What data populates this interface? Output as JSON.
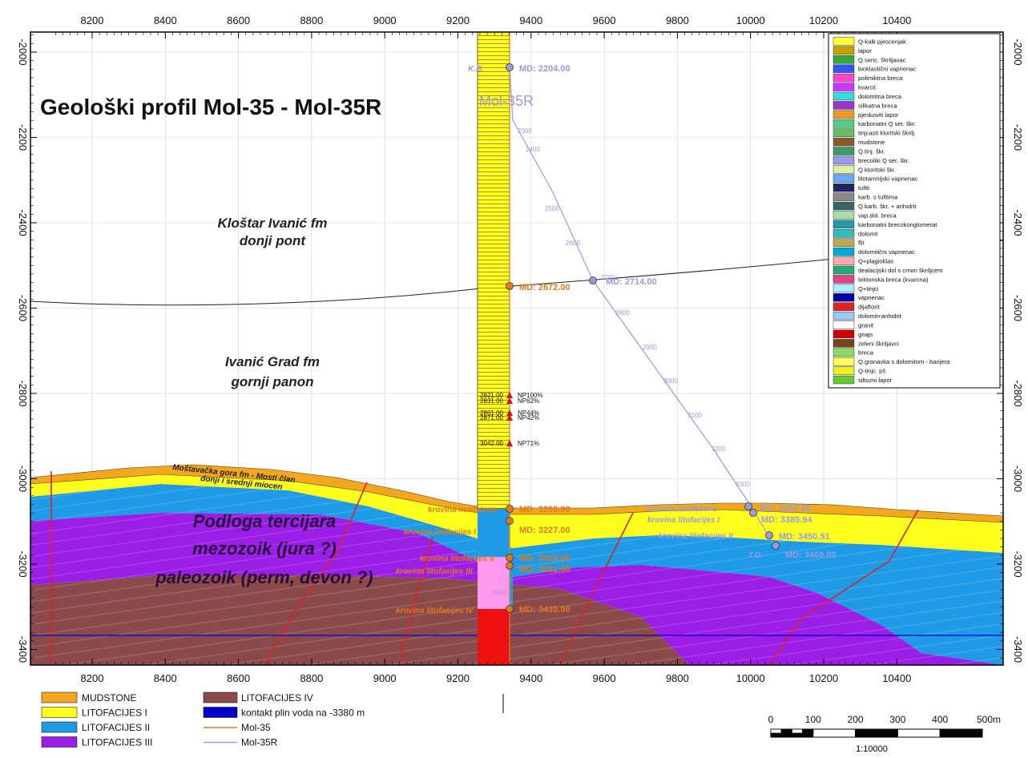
{
  "title": "Geološki profil Mol-35  -  Mol-35R",
  "well_name": "Mol-35R",
  "x_ticks": [
    8200,
    8400,
    8600,
    8800,
    9000,
    9200,
    9400,
    9600,
    9800,
    10000,
    10200,
    10400
  ],
  "y_ticks": [
    -2000,
    -2200,
    -2400,
    -2600,
    -2800,
    -3000,
    -3200,
    -3400
  ],
  "formations": [
    {
      "line1": "Kloštar Ivanić fm",
      "line2": "donji pont"
    },
    {
      "line1": "Ivanić Grad fm",
      "line2": "gornji panon"
    }
  ],
  "mostavacka": {
    "line1": "Moštavačka gora fm - Mosti član",
    "line2": "donji i srednji miocen"
  },
  "basement": {
    "line1": "Podloga tercijara",
    "line2": "mezozoik (jura ?)",
    "line3": "paleozoik (perm, devon ?)"
  },
  "md_labels": [
    "MD: 2204.00",
    "MD: 2672.00",
    "MD: 2714.00",
    "MD: 3200.90",
    "MD: 3227.00",
    "MD: 3315.00",
    "MD: 3331.00",
    "MD: 3435.00",
    "MD: 3367.05",
    "MD: 3385.94",
    "MD: 3450.51",
    "MD: 3469.00"
  ],
  "md_texts": [
    "2300",
    "2400",
    "2500",
    "2600",
    "2700",
    "2800",
    "2900",
    "3000",
    "3100",
    "3200",
    "3300",
    "3400"
  ],
  "tops": [
    "krovina mudstone",
    "krovina litofacijes I",
    "krovina litofacijes II",
    "krovina litofacijes III",
    "krovina litofacijes IV",
    "K.B.",
    "T.D."
  ],
  "samples": [
    {
      "md": "2821.00",
      "np": "NP100%"
    },
    {
      "md": "2831.00",
      "np": "NP62%"
    },
    {
      "md": "2861.00",
      "np": "NP44%"
    },
    {
      "md": "2871.00",
      "np": "NP42%"
    },
    {
      "md": "3042.00",
      "np": "NP71%"
    }
  ],
  "lithology_legend": [
    {
      "label": "Q-kalk pjescenjak",
      "color": "#ffff33"
    },
    {
      "label": "lapor",
      "color": "#c8a000"
    },
    {
      "label": "Q.seric. škriljavac",
      "color": "#33aa33"
    },
    {
      "label": "bioklastični vapnenac",
      "color": "#3355ff"
    },
    {
      "label": "polimiktna breca",
      "color": "#ff44cc"
    },
    {
      "label": "kvarcit",
      "color": "#cc33ff"
    },
    {
      "label": "dolomitna breca",
      "color": "#33dddd"
    },
    {
      "label": "silikatna breca",
      "color": "#9933cc"
    },
    {
      "label": "pjeskoviti lapor",
      "color": "#ee9922"
    },
    {
      "label": "karbonatni Q ser. škr.",
      "color": "#55cc88"
    },
    {
      "label": "tinjcasti kloritski škrilj",
      "color": "#66bb66"
    },
    {
      "label": "mudstone",
      "color": "#8b5a2b"
    },
    {
      "label": "Q.tinj. škr.",
      "color": "#3a9a6a"
    },
    {
      "label": "brecoliki Q ser. škr.",
      "color": "#9999ee"
    },
    {
      "label": "Q.kloritski škr.",
      "color": "#ddeeaa"
    },
    {
      "label": "litotamnijski vapnenac",
      "color": "#66aaff"
    },
    {
      "label": "tufiti",
      "color": "#222266"
    },
    {
      "label": "karb. s tufitima",
      "color": "#888888"
    },
    {
      "label": "Q.karb. škr. + anhidrit",
      "color": "#336666"
    },
    {
      "label": "vap.dol. breca",
      "color": "#aaddaa"
    },
    {
      "label": "karbonatni brecokonglomerat",
      "color": "#2299aa"
    },
    {
      "label": "dolomit",
      "color": "#33bbbb"
    },
    {
      "label": "flit",
      "color": "#bbaa55"
    },
    {
      "label": "dolomitični vapnenac",
      "color": "#00aadd"
    },
    {
      "label": "Q+plagioklas",
      "color": "#ffaaaa"
    },
    {
      "label": "dealacijski dol s crnim škriljcem",
      "color": "#22aa77"
    },
    {
      "label": "tektonska breca (kvarcna)",
      "color": "#dd4488"
    },
    {
      "label": "Q+tinjci",
      "color": "#aaeeff"
    },
    {
      "label": "vapnenac",
      "color": "#0000aa"
    },
    {
      "label": "dijaftorit",
      "color": "#dd2222"
    },
    {
      "label": "dolomit+anhidrit",
      "color": "#99ccee"
    },
    {
      "label": "granit",
      "color": "#ffffff"
    },
    {
      "label": "gnajs",
      "color": "#cc0000"
    },
    {
      "label": "zeleni škriljavci",
      "color": "#774422"
    },
    {
      "label": "breca",
      "color": "#88dd66"
    },
    {
      "label": "Q.granavka s dolomitom - barijera",
      "color": "#ffff55"
    },
    {
      "label": "Q-tinjc. pš",
      "color": "#eeee22"
    },
    {
      "label": "siltozni lapor",
      "color": "#66cc33"
    }
  ],
  "bottom_legend_left": [
    {
      "label": "MUDSTONE",
      "color": "#f2a81e"
    },
    {
      "label": "LITOFACIJES I",
      "color": "#ffff1e"
    },
    {
      "label": "LITOFACIJES II",
      "color": "#1e9ae6"
    },
    {
      "label": "LITOFACIJES III",
      "color": "#9a1ee6"
    }
  ],
  "bottom_legend_right": [
    {
      "label": "LITOFACIJES IV",
      "color": "#8a4a4a",
      "kind": "box"
    },
    {
      "label": "kontakt plin voda na -3380 m",
      "color": "#0000cc",
      "kind": "box"
    },
    {
      "label": "Mol-35",
      "color": "#e07a1a",
      "kind": "line"
    },
    {
      "label": "Mol-35R",
      "color": "#9a9adf",
      "kind": "line"
    }
  ],
  "scale_labels": [
    "0",
    "100",
    "200",
    "300",
    "400",
    "500m"
  ],
  "scale_ratio": "1:10000",
  "colors": {
    "mudstone": "#f2a81e",
    "lito1": "#ffff1e",
    "lito2": "#1e9ae6",
    "lito3": "#9a1ee6",
    "lito4": "#8a4a4a",
    "gwc": "#0000cc",
    "mol35": "#e07a1a",
    "mol35r": "#9a9adf"
  }
}
